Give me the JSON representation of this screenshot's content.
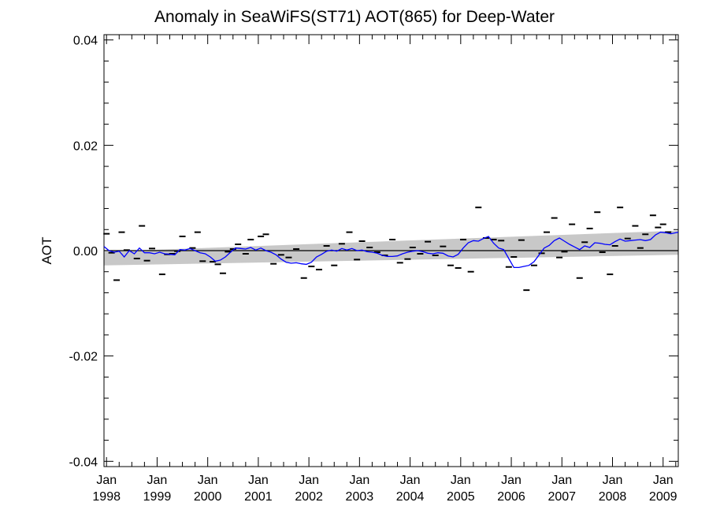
{
  "chart_data": {
    "type": "scatter",
    "title": "Anomaly in SeaWiFS(ST71) AOT(865) for Deep-Water",
    "ylabel": "AOT",
    "xlabel": "",
    "ylim": [
      -0.041,
      0.041
    ],
    "xlim": [
      1997.95,
      2009.3
    ],
    "y_ticks": [
      {
        "value": 0.04,
        "label": "0.04"
      },
      {
        "value": 0.02,
        "label": "0.02"
      },
      {
        "value": 0.0,
        "label": "0.00"
      },
      {
        "value": -0.02,
        "label": "-0.02"
      },
      {
        "value": -0.04,
        "label": "-0.04"
      }
    ],
    "x_ticks": [
      {
        "value": 1998,
        "month": "Jan",
        "year": "1998"
      },
      {
        "value": 1999,
        "month": "Jan",
        "year": "1999"
      },
      {
        "value": 2000,
        "month": "Jan",
        "year": "2000"
      },
      {
        "value": 2001,
        "month": "Jan",
        "year": "2001"
      },
      {
        "value": 2002,
        "month": "Jan",
        "year": "2002"
      },
      {
        "value": 2003,
        "month": "Jan",
        "year": "2003"
      },
      {
        "value": 2004,
        "month": "Jan",
        "year": "2004"
      },
      {
        "value": 2005,
        "month": "Jan",
        "year": "2005"
      },
      {
        "value": 2006,
        "month": "Jan",
        "year": "2006"
      },
      {
        "value": 2007,
        "month": "Jan",
        "year": "2007"
      },
      {
        "value": 2008,
        "month": "Jan",
        "year": "2008"
      },
      {
        "value": 2009,
        "month": "Jan",
        "year": "2009"
      }
    ],
    "band": {
      "color": "#c8c8c8",
      "lower": [
        [
          1997.95,
          -0.0028
        ],
        [
          2009.3,
          -0.0008
        ]
      ],
      "upper": [
        [
          1997.95,
          -0.0002
        ],
        [
          2009.3,
          0.0038
        ]
      ]
    },
    "zero_line": 0.0,
    "series": [
      {
        "style": "points",
        "color": "#000000",
        "points": [
          [
            1998.0,
            0.0032
          ],
          [
            1998.1,
            -0.0004
          ],
          [
            1998.2,
            -0.0056
          ],
          [
            1998.3,
            0.0035
          ],
          [
            1998.4,
            0.0001
          ],
          [
            1998.6,
            -0.0015
          ],
          [
            1998.7,
            0.0047
          ],
          [
            1998.8,
            -0.0019
          ],
          [
            1998.9,
            0.0004
          ],
          [
            1999.1,
            -0.0045
          ],
          [
            1999.2,
            -0.0007
          ],
          [
            1999.3,
            -0.0006
          ],
          [
            1999.4,
            -0.0001
          ],
          [
            1999.5,
            0.0027
          ],
          [
            1999.7,
            0.0005
          ],
          [
            1999.8,
            0.0035
          ],
          [
            1999.9,
            -0.002
          ],
          [
            2000.1,
            -0.0021
          ],
          [
            2000.2,
            -0.0026
          ],
          [
            2000.3,
            -0.0043
          ],
          [
            2000.4,
            -0.0002
          ],
          [
            2000.5,
            0.0003
          ],
          [
            2000.6,
            0.0012
          ],
          [
            2000.75,
            -0.0006
          ],
          [
            2000.85,
            0.0021
          ],
          [
            2001.05,
            0.0027
          ],
          [
            2001.15,
            0.0031
          ],
          [
            2001.3,
            -0.0025
          ],
          [
            2001.45,
            -0.0008
          ],
          [
            2001.6,
            -0.0013
          ],
          [
            2001.75,
            0.0003
          ],
          [
            2001.9,
            -0.0052
          ],
          [
            2002.05,
            -0.003
          ],
          [
            2002.2,
            -0.0036
          ],
          [
            2002.35,
            0.0009
          ],
          [
            2002.5,
            -0.0028
          ],
          [
            2002.65,
            0.0013
          ],
          [
            2002.8,
            0.0035
          ],
          [
            2002.95,
            -0.0017
          ],
          [
            2003.05,
            0.0018
          ],
          [
            2003.2,
            0.0006
          ],
          [
            2003.35,
            -0.0003
          ],
          [
            2003.5,
            -0.0009
          ],
          [
            2003.65,
            0.0021
          ],
          [
            2003.8,
            -0.0023
          ],
          [
            2003.95,
            -0.0016
          ],
          [
            2004.05,
            0.0006
          ],
          [
            2004.2,
            -0.0006
          ],
          [
            2004.35,
            0.0017
          ],
          [
            2004.5,
            -0.0009
          ],
          [
            2004.65,
            0.0008
          ],
          [
            2004.8,
            -0.0028
          ],
          [
            2004.95,
            -0.0033
          ],
          [
            2005.05,
            0.0021
          ],
          [
            2005.2,
            -0.004
          ],
          [
            2005.35,
            0.0082
          ],
          [
            2005.5,
            0.0024
          ],
          [
            2005.65,
            0.0021
          ],
          [
            2005.8,
            0.0019
          ],
          [
            2005.95,
            -0.0031
          ],
          [
            2006.05,
            -0.0012
          ],
          [
            2006.2,
            0.002
          ],
          [
            2006.3,
            -0.0075
          ],
          [
            2006.45,
            -0.0028
          ],
          [
            2006.6,
            -0.0005
          ],
          [
            2006.7,
            0.0035
          ],
          [
            2006.85,
            0.0062
          ],
          [
            2006.95,
            -0.0013
          ],
          [
            2007.05,
            -0.0002
          ],
          [
            2007.2,
            0.005
          ],
          [
            2007.35,
            -0.0052
          ],
          [
            2007.45,
            0.0016
          ],
          [
            2007.55,
            0.0042
          ],
          [
            2007.7,
            0.0073
          ],
          [
            2007.8,
            -0.0003
          ],
          [
            2007.95,
            -0.0045
          ],
          [
            2008.05,
            0.0009
          ],
          [
            2008.15,
            0.0082
          ],
          [
            2008.3,
            0.0023
          ],
          [
            2008.45,
            0.0047
          ],
          [
            2008.55,
            0.0005
          ],
          [
            2008.65,
            0.0031
          ],
          [
            2008.8,
            0.0067
          ],
          [
            2008.9,
            0.0044
          ],
          [
            2009.0,
            0.005
          ],
          [
            2009.1,
            0.0035
          ]
        ]
      },
      {
        "style": "line",
        "color": "#0000ff",
        "points": [
          [
            1997.95,
            0.0008
          ],
          [
            1998.05,
            0.0
          ],
          [
            1998.15,
            -0.0003
          ],
          [
            1998.25,
            -0.0001
          ],
          [
            1998.35,
            -0.0012
          ],
          [
            1998.45,
            0.0
          ],
          [
            1998.55,
            -0.0006
          ],
          [
            1998.65,
            0.0005
          ],
          [
            1998.75,
            -0.0004
          ],
          [
            1998.85,
            -0.0004
          ],
          [
            1998.95,
            -0.0006
          ],
          [
            1999.05,
            -0.0003
          ],
          [
            1999.15,
            -0.0006
          ],
          [
            1999.25,
            -0.0007
          ],
          [
            1999.35,
            -0.0008
          ],
          [
            1999.45,
            0.0002
          ],
          [
            1999.55,
            0.0001
          ],
          [
            1999.65,
            0.0004
          ],
          [
            1999.75,
            0.0
          ],
          [
            1999.85,
            -0.0004
          ],
          [
            1999.95,
            -0.0006
          ],
          [
            2000.05,
            -0.0012
          ],
          [
            2000.15,
            -0.002
          ],
          [
            2000.25,
            -0.0018
          ],
          [
            2000.35,
            -0.0012
          ],
          [
            2000.45,
            -0.0003
          ],
          [
            2000.55,
            0.0005
          ],
          [
            2000.65,
            0.0004
          ],
          [
            2000.75,
            0.0003
          ],
          [
            2000.85,
            0.0006
          ],
          [
            2000.95,
            0.0001
          ],
          [
            2001.05,
            0.0005
          ],
          [
            2001.15,
            0.0
          ],
          [
            2001.25,
            -0.0003
          ],
          [
            2001.35,
            -0.0008
          ],
          [
            2001.45,
            -0.0016
          ],
          [
            2001.55,
            -0.0022
          ],
          [
            2001.65,
            -0.0024
          ],
          [
            2001.75,
            -0.0023
          ],
          [
            2001.85,
            -0.0025
          ],
          [
            2001.95,
            -0.0026
          ],
          [
            2002.05,
            -0.0022
          ],
          [
            2002.15,
            -0.0012
          ],
          [
            2002.25,
            -0.0007
          ],
          [
            2002.35,
            -0.0001
          ],
          [
            2002.45,
            0.0001
          ],
          [
            2002.55,
            -0.0001
          ],
          [
            2002.65,
            0.0004
          ],
          [
            2002.75,
            0.0001
          ],
          [
            2002.85,
            0.0004
          ],
          [
            2002.95,
            0.0
          ],
          [
            2003.05,
            0.0001
          ],
          [
            2003.15,
            -0.0002
          ],
          [
            2003.25,
            -0.0003
          ],
          [
            2003.35,
            -0.0005
          ],
          [
            2003.45,
            -0.0009
          ],
          [
            2003.55,
            -0.0011
          ],
          [
            2003.65,
            -0.0011
          ],
          [
            2003.75,
            -0.001
          ],
          [
            2003.85,
            -0.0006
          ],
          [
            2003.95,
            -0.0003
          ],
          [
            2004.05,
            -0.0001
          ],
          [
            2004.15,
            0.0
          ],
          [
            2004.25,
            -0.0002
          ],
          [
            2004.35,
            -0.0005
          ],
          [
            2004.45,
            -0.0006
          ],
          [
            2004.55,
            -0.0004
          ],
          [
            2004.65,
            -0.0005
          ],
          [
            2004.75,
            -0.001
          ],
          [
            2004.85,
            -0.0012
          ],
          [
            2004.95,
            -0.0007
          ],
          [
            2005.05,
            0.0005
          ],
          [
            2005.15,
            0.0015
          ],
          [
            2005.25,
            0.0019
          ],
          [
            2005.35,
            0.0018
          ],
          [
            2005.45,
            0.0023
          ],
          [
            2005.55,
            0.0027
          ],
          [
            2005.65,
            0.0014
          ],
          [
            2005.75,
            0.0005
          ],
          [
            2005.85,
            0.0002
          ],
          [
            2005.95,
            -0.0015
          ],
          [
            2006.05,
            -0.0032
          ],
          [
            2006.15,
            -0.0032
          ],
          [
            2006.25,
            -0.003
          ],
          [
            2006.35,
            -0.0028
          ],
          [
            2006.45,
            -0.0021
          ],
          [
            2006.55,
            -0.0008
          ],
          [
            2006.65,
            0.0005
          ],
          [
            2006.75,
            0.001
          ],
          [
            2006.85,
            0.0019
          ],
          [
            2006.95,
            0.0024
          ],
          [
            2007.05,
            0.0018
          ],
          [
            2007.15,
            0.0012
          ],
          [
            2007.25,
            0.0007
          ],
          [
            2007.35,
            0.0002
          ],
          [
            2007.45,
            0.0009
          ],
          [
            2007.55,
            0.0006
          ],
          [
            2007.65,
            0.0015
          ],
          [
            2007.75,
            0.0014
          ],
          [
            2007.85,
            0.0012
          ],
          [
            2007.95,
            0.0011
          ],
          [
            2008.05,
            0.0017
          ],
          [
            2008.15,
            0.0022
          ],
          [
            2008.25,
            0.0018
          ],
          [
            2008.35,
            0.0019
          ],
          [
            2008.45,
            0.002
          ],
          [
            2008.55,
            0.0021
          ],
          [
            2008.65,
            0.0019
          ],
          [
            2008.75,
            0.0021
          ],
          [
            2008.85,
            0.003
          ],
          [
            2008.95,
            0.0035
          ],
          [
            2009.05,
            0.0034
          ],
          [
            2009.15,
            0.0032
          ],
          [
            2009.25,
            0.0034
          ],
          [
            2009.3,
            0.0035
          ]
        ]
      }
    ]
  }
}
